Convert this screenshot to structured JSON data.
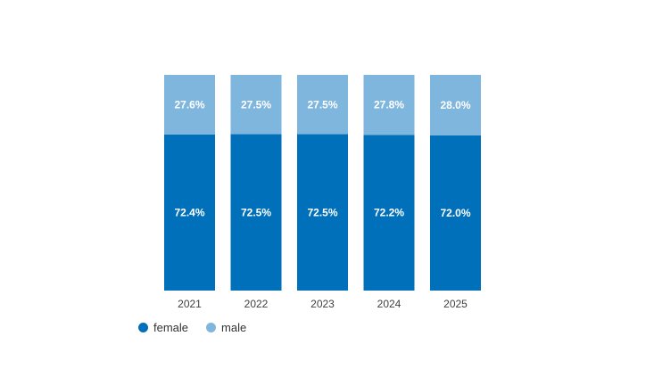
{
  "chart_data": {
    "type": "bar",
    "stacked": true,
    "categories": [
      "2021",
      "2022",
      "2023",
      "2024",
      "2025"
    ],
    "series": [
      {
        "name": "female",
        "values": [
          72.4,
          72.5,
          72.5,
          72.2,
          72.0
        ],
        "labels": [
          "72.4%",
          "72.5%",
          "72.5%",
          "72.2%",
          "72.0%"
        ],
        "color": "#0070bb"
      },
      {
        "name": "male",
        "values": [
          27.6,
          27.5,
          27.5,
          27.8,
          28.0
        ],
        "labels": [
          "27.6%",
          "27.5%",
          "27.5%",
          "27.8%",
          "28.0%"
        ],
        "color": "#7fb6de"
      }
    ],
    "ylim": [
      0,
      100
    ],
    "grid": false,
    "legend_position": "bottom-left"
  }
}
